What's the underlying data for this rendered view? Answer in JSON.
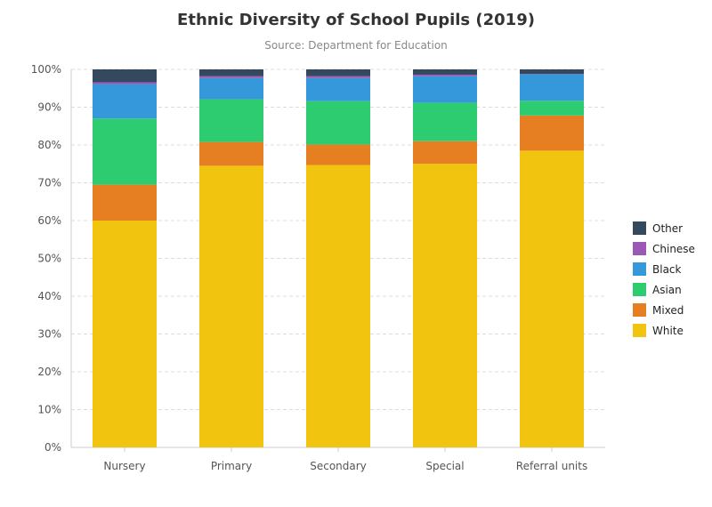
{
  "chart_data": {
    "type": "bar",
    "stacked": true,
    "title": "Ethnic Diversity of School Pupils (2019)",
    "subtitle": "Source: Department for Education",
    "xlabel": "",
    "ylabel": "",
    "ylim": [
      0,
      100
    ],
    "y_ticks": [
      "0%",
      "10%",
      "20%",
      "30%",
      "40%",
      "50%",
      "60%",
      "70%",
      "80%",
      "90%",
      "100%"
    ],
    "grid": true,
    "legend_position": "right",
    "categories": [
      "Nursery",
      "Primary",
      "Secondary",
      "Special",
      "Referral units"
    ],
    "series": [
      {
        "name": "White",
        "color": "#f1c40f",
        "values": [
          60.0,
          74.5,
          74.7,
          75.0,
          78.5
        ]
      },
      {
        "name": "Mixed",
        "color": "#e67e22",
        "values": [
          9.5,
          6.3,
          5.4,
          6.0,
          9.3
        ]
      },
      {
        "name": "Asian",
        "color": "#2ecc71",
        "values": [
          17.5,
          11.3,
          11.5,
          10.2,
          3.9
        ]
      },
      {
        "name": "Black",
        "color": "#3498db",
        "values": [
          9.1,
          5.6,
          6.1,
          7.0,
          7.0
        ]
      },
      {
        "name": "Chinese",
        "color": "#9b59b6",
        "values": [
          0.5,
          0.5,
          0.5,
          0.4,
          0.1
        ]
      },
      {
        "name": "Other",
        "color": "#34495e",
        "values": [
          3.4,
          1.8,
          1.8,
          1.4,
          1.2
        ]
      }
    ]
  }
}
